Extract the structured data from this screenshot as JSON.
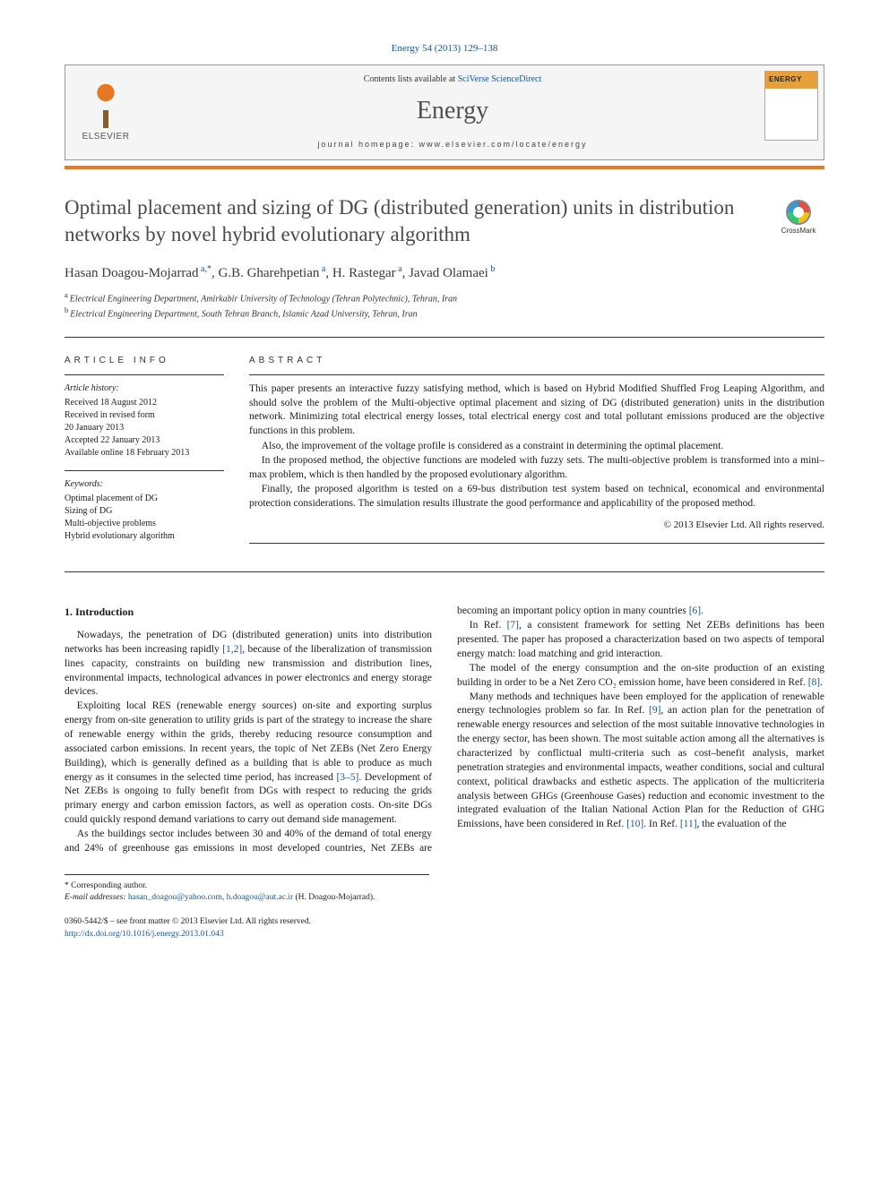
{
  "citation": "Energy 54 (2013) 129–138",
  "header": {
    "contents_prefix": "Contents lists available at ",
    "contents_link": "SciVerse ScienceDirect",
    "journal": "Energy",
    "homepage_label": "journal homepage: ",
    "homepage_url": "www.elsevier.com/locate/energy",
    "publisher": "ELSEVIER"
  },
  "crossmark": "CrossMark",
  "title": "Optimal placement and sizing of DG (distributed generation) units in distribution networks by novel hybrid evolutionary algorithm",
  "authors_html": "Hasan Doagou-Mojarrad|a,*|, G.B. Gharehpetian|a|, H. Rastegar|a|, Javad Olamaei|b|",
  "authors": [
    {
      "name": "Hasan Doagou-Mojarrad",
      "aff": "a,*"
    },
    {
      "name": "G.B. Gharehpetian",
      "aff": "a"
    },
    {
      "name": "H. Rastegar",
      "aff": "a"
    },
    {
      "name": "Javad Olamaei",
      "aff": "b"
    }
  ],
  "affiliations": [
    {
      "key": "a",
      "text": "Electrical Engineering Department, Amirkabir University of Technology (Tehran Polytechnic), Tehran, Iran"
    },
    {
      "key": "b",
      "text": "Electrical Engineering Department, South Tehran Branch, Islamic Azad University, Tehran, Iran"
    }
  ],
  "article_info": {
    "heading": "ARTICLE INFO",
    "history_heading": "Article history:",
    "history": [
      "Received 18 August 2012",
      "Received in revised form",
      "20 January 2013",
      "Accepted 22 January 2013",
      "Available online 18 February 2013"
    ],
    "keywords_heading": "Keywords:",
    "keywords": [
      "Optimal placement of DG",
      "Sizing of DG",
      "Multi-objective problems",
      "Hybrid evolutionary algorithm"
    ]
  },
  "abstract": {
    "heading": "ABSTRACT",
    "paragraphs": [
      "This paper presents an interactive fuzzy satisfying method, which is based on Hybrid Modified Shuffled Frog Leaping Algorithm, and should solve the problem of the Multi-objective optimal placement and sizing of DG (distributed generation) units in the distribution network. Minimizing total electrical energy losses, total electrical energy cost and total pollutant emissions produced are the objective functions in this problem.",
      "Also, the improvement of the voltage profile is considered as a constraint in determining the optimal placement.",
      "In the proposed method, the objective functions are modeled with fuzzy sets. The multi-objective problem is transformed into a mini–max problem, which is then handled by the proposed evolutionary algorithm.",
      "Finally, the proposed algorithm is tested on a 69-bus distribution test system based on technical, economical and environmental protection considerations. The simulation results illustrate the good performance and applicability of the proposed method."
    ],
    "copyright": "© 2013 Elsevier Ltd. All rights reserved."
  },
  "body": {
    "section_number": "1.",
    "section_title": "Introduction",
    "paragraphs": [
      "Nowadays, the penetration of DG (distributed generation) units into distribution networks has been increasing rapidly [1,2], because of the liberalization of transmission lines capacity, constraints on building new transmission and distribution lines, environmental impacts, technological advances in power electronics and energy storage devices.",
      "Exploiting local RES (renewable energy sources) on-site and exporting surplus energy from on-site generation to utility grids is part of the strategy to increase the share of renewable energy within the grids, thereby reducing resource consumption and associated carbon emissions. In recent years, the topic of Net ZEBs (Net Zero Energy Building), which is generally defined as a building that is able to produce as much energy as it consumes in the selected time period, has increased [3–5]. Development of Net ZEBs is ongoing to fully benefit from DGs with respect to reducing the grids primary energy and carbon emission factors, as well as operation costs. On-site DGs could quickly respond demand variations to carry out demand side management.",
      "As the buildings sector includes between 30 and 40% of the demand of total energy and 24% of greenhouse gas emissions in most developed countries, Net ZEBs are becoming an important policy option in many countries [6].",
      "In Ref. [7], a consistent framework for setting Net ZEBs definitions has been presented. The paper has proposed a characterization based on two aspects of temporal energy match: load matching and grid interaction.",
      "The model of the energy consumption and the on-site production of an existing building in order to be a Net Zero CO₂ emission home, have been considered in Ref. [8].",
      "Many methods and techniques have been employed for the application of renewable energy technologies problem so far. In Ref. [9], an action plan for the penetration of renewable energy resources and selection of the most suitable innovative technologies in the energy sector, has been shown. The most suitable action among all the alternatives is characterized by conflictual multi-criteria such as cost–benefit analysis, market penetration strategies and environmental impacts, weather conditions, social and cultural context, political drawbacks and esthetic aspects. The application of the multicriteria analysis between GHGs (Greenhouse Gases) reduction and economic investment to the integrated evaluation of the Italian National Action Plan for the Reduction of GHG Emissions, have been considered in Ref. [10]. In Ref. [11], the evaluation of the"
    ]
  },
  "footer": {
    "corresponding": "* Corresponding author.",
    "email_label": "E-mail addresses: ",
    "emails": "hasan_doagou@yahoo.com, h.doagou@aut.ac.ir",
    "email_attribution": " (H. Doagou-Mojarrad).",
    "front_matter": "0360-5442/$ – see front matter © 2013 Elsevier Ltd. All rights reserved.",
    "doi": "http://dx.doi.org/10.1016/j.energy.2013.01.043"
  },
  "colors": {
    "link": "#1a5490",
    "accent": "#e87722",
    "text": "#1a1a1a",
    "muted": "#4a4a4a"
  }
}
